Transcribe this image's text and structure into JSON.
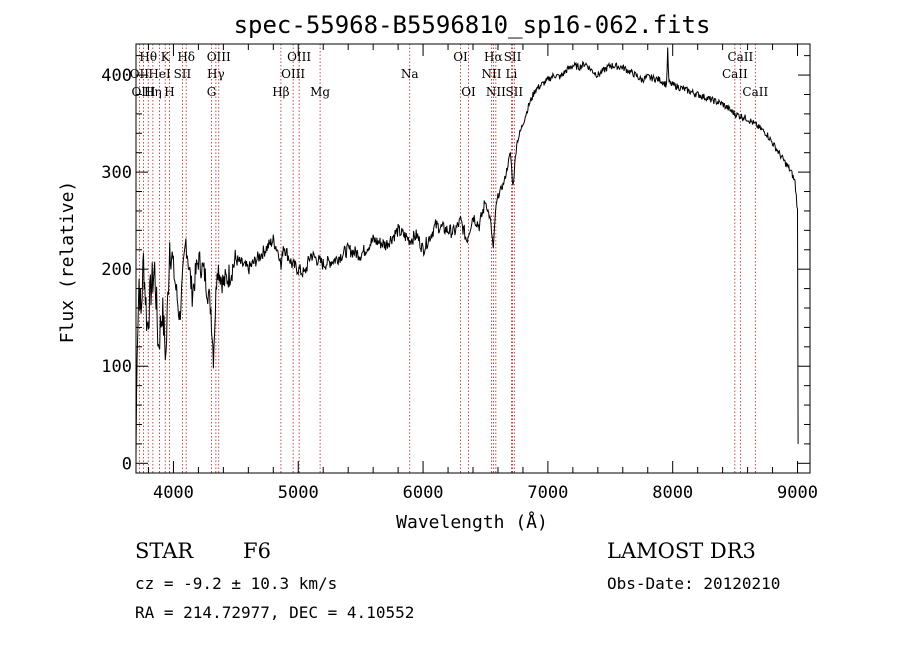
{
  "chart_data": {
    "type": "line",
    "title": "spec-55968-B5596810_sp16-062.fits",
    "xlabel": "Wavelength (Å)",
    "ylabel": "Flux (relative)",
    "xlim": [
      3700,
      9100
    ],
    "ylim": [
      -10,
      432
    ],
    "x_ticks": [
      4000,
      5000,
      6000,
      7000,
      8000,
      9000
    ],
    "y_ticks": [
      0,
      100,
      200,
      300,
      400
    ],
    "series": [
      {
        "name": "flux",
        "color": "#000000",
        "x": [
          3700,
          3710,
          3725,
          3740,
          3760,
          3790,
          3820,
          3850,
          3880,
          3910,
          3940,
          3970,
          4000,
          4050,
          4100,
          4150,
          4200,
          4250,
          4300,
          4320,
          4350,
          4400,
          4450,
          4500,
          4600,
          4700,
          4800,
          4850,
          4862,
          4880,
          4950,
          5000,
          5050,
          5100,
          5150,
          5200,
          5300,
          5400,
          5500,
          5600,
          5700,
          5800,
          5893,
          5950,
          6000,
          6100,
          6200,
          6250,
          6300,
          6350,
          6400,
          6450,
          6500,
          6540,
          6563,
          6580,
          6600,
          6650,
          6700,
          6720,
          6750,
          6800,
          6850,
          6900,
          6950,
          7000,
          7050,
          7100,
          7150,
          7200,
          7250,
          7300,
          7350,
          7400,
          7450,
          7500,
          7600,
          7700,
          7750,
          7800,
          7900,
          7950,
          7960,
          7970,
          8000,
          8100,
          8200,
          8300,
          8400,
          8500,
          8600,
          8700,
          8750,
          8800,
          8850,
          8900,
          8950,
          8980,
          9000,
          9005
        ],
        "y": [
          10,
          130,
          190,
          150,
          210,
          140,
          180,
          200,
          120,
          160,
          110,
          230,
          200,
          150,
          230,
          175,
          210,
          195,
          160,
          110,
          205,
          185,
          195,
          210,
          200,
          215,
          230,
          215,
          200,
          225,
          205,
          200,
          195,
          215,
          210,
          205,
          210,
          220,
          215,
          230,
          225,
          240,
          230,
          235,
          220,
          245,
          240,
          238,
          250,
          230,
          255,
          245,
          270,
          250,
          220,
          260,
          275,
          290,
          320,
          285,
          330,
          350,
          370,
          385,
          390,
          395,
          400,
          398,
          405,
          410,
          408,
          412,
          405,
          400,
          405,
          410,
          408,
          400,
          395,
          398,
          395,
          390,
          425,
          392,
          390,
          385,
          380,
          375,
          370,
          360,
          355,
          345,
          340,
          330,
          320,
          310,
          300,
          290,
          260,
          20
        ]
      }
    ],
    "emission_lines": [
      {
        "label": "Hθ",
        "x": 3798,
        "row": 1
      },
      {
        "label": "OII",
        "x": 3727,
        "row": 2
      },
      {
        "label": "OIII",
        "x": 3760,
        "row": 3
      },
      {
        "label": "K",
        "x": 3934,
        "row": 1
      },
      {
        "label": "HeI",
        "x": 3889,
        "row": 2
      },
      {
        "label": "Hη",
        "x": 3835,
        "row": 3
      },
      {
        "label": "Hδ",
        "x": 4102,
        "row": 1
      },
      {
        "label": "SII",
        "x": 4072,
        "row": 2
      },
      {
        "label": "H",
        "x": 3968,
        "row": 3
      },
      {
        "label": "OIII",
        "x": 4363,
        "row": 1
      },
      {
        "label": "Hγ",
        "x": 4340,
        "row": 2
      },
      {
        "label": "G",
        "x": 4305,
        "row": 3
      },
      {
        "label": "Hβ",
        "x": 4861,
        "row": 3
      },
      {
        "label": "OIII",
        "x": 5007,
        "row": 1
      },
      {
        "label": "OIII",
        "x": 4959,
        "row": 2
      },
      {
        "label": "Mg",
        "x": 5175,
        "row": 3
      },
      {
        "label": "Na",
        "x": 5893,
        "row": 2
      },
      {
        "label": "OI",
        "x": 6300,
        "row": 1
      },
      {
        "label": "OI",
        "x": 6364,
        "row": 3
      },
      {
        "label": "Hα",
        "x": 6563,
        "row": 1
      },
      {
        "label": "SII",
        "x": 6717,
        "row": 1
      },
      {
        "label": "NII",
        "x": 6548,
        "row": 2
      },
      {
        "label": "Li",
        "x": 6708,
        "row": 2
      },
      {
        "label": "NII",
        "x": 6583,
        "row": 3
      },
      {
        "label": "SII",
        "x": 6731,
        "row": 3
      },
      {
        "label": "CaII",
        "x": 8542,
        "row": 1
      },
      {
        "label": "CaII",
        "x": 8498,
        "row": 2
      },
      {
        "label": "CaII",
        "x": 8662,
        "row": 3
      }
    ]
  },
  "info": {
    "object_class": "STAR",
    "subclass": "F6",
    "redshift": "cz = -9.2 ± 10.3 km/s",
    "coords": "RA = 214.72977, DEC =   4.10552",
    "survey": "LAMOST DR3",
    "obs_date": "Obs-Date: 20120210"
  }
}
